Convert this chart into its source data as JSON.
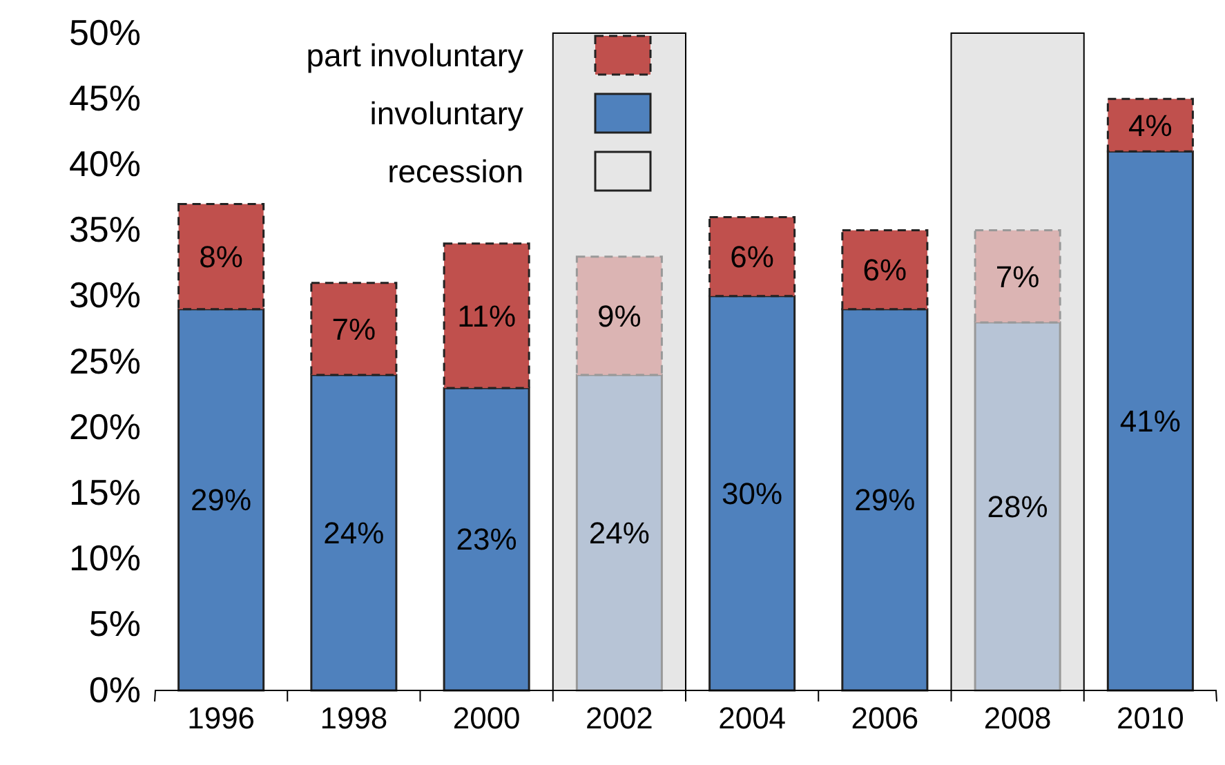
{
  "chart_data": {
    "type": "bar",
    "stacked": true,
    "categories": [
      "1996",
      "1998",
      "2000",
      "2002",
      "2004",
      "2006",
      "2008",
      "2010"
    ],
    "series": [
      {
        "name": "involuntary",
        "color": "#4f81bd",
        "colors": [
          "#4f81bd",
          "#4f81bd",
          "#4f81bd",
          "#b7c4d6",
          "#4f81bd",
          "#4f81bd",
          "#b7c4d6",
          "#4f81bd"
        ],
        "values": [
          29,
          24,
          23,
          24,
          30,
          29,
          28,
          41
        ],
        "value_labels": [
          "29%",
          "24%",
          "23%",
          "24%",
          "30%",
          "29%",
          "28%",
          "41%"
        ]
      },
      {
        "name": "part involuntary",
        "color": "#c0504d",
        "colors": [
          "#c0504d",
          "#c0504d",
          "#c0504d",
          "#dbb4b3",
          "#c0504d",
          "#c0504d",
          "#dbb4b3",
          "#c0504d"
        ],
        "line_style": "dashed",
        "values": [
          8,
          7,
          11,
          9,
          6,
          6,
          7,
          4
        ],
        "value_labels": [
          "8%",
          "7%",
          "11%",
          "9%",
          "6%",
          "6%",
          "7%",
          "4%"
        ]
      }
    ],
    "bands": [
      {
        "axis": "x",
        "from": "2002",
        "to": "2002",
        "label": "recession",
        "color": "#e6e6e6"
      },
      {
        "axis": "x",
        "from": "2008",
        "to": "2008",
        "color": "#e6e6e6"
      }
    ],
    "ylim": [
      0,
      50
    ],
    "yticks": [
      {
        "value": 0,
        "label": "0%"
      },
      {
        "value": 5,
        "label": "5%"
      },
      {
        "value": 10,
        "label": "10%"
      },
      {
        "value": 15,
        "label": "15%"
      },
      {
        "value": 20,
        "label": "20%"
      },
      {
        "value": 25,
        "label": "25%"
      },
      {
        "value": 30,
        "label": "30%"
      },
      {
        "value": 35,
        "label": "35%"
      },
      {
        "value": 40,
        "label": "40%"
      },
      {
        "value": 45,
        "label": "45%"
      },
      {
        "value": 50,
        "label": "50%"
      }
    ],
    "grid": false,
    "legend": "top left"
  }
}
